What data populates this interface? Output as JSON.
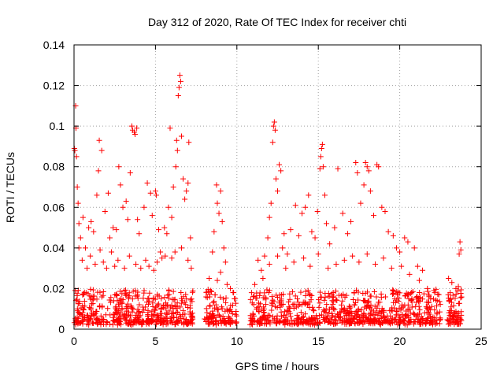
{
  "chart_data": {
    "type": "scatter",
    "title": "Day 312 of 2020, Rate Of TEC Index for receiver chti",
    "xlabel": "GPS time / hours",
    "ylabel": "ROTI / TECUs",
    "xlim": [
      0,
      25
    ],
    "ylim": [
      0,
      0.14
    ],
    "xticks": [
      0,
      5,
      10,
      15,
      20,
      25
    ],
    "xtick_labels": [
      "0",
      "5",
      "10",
      "15",
      "20",
      "25"
    ],
    "yticks": [
      0,
      0.02,
      0.04,
      0.06,
      0.08,
      0.1,
      0.12,
      0.14
    ],
    "ytick_labels": [
      "0",
      "0.02",
      "0.04",
      "0.06",
      "0.08",
      "0.1",
      "0.12",
      "0.14"
    ],
    "grid": true,
    "marker": "+",
    "color": "#ff0000",
    "series": [
      {
        "name": "ROTI",
        "points": [
          [
            0.02,
            0.089
          ],
          [
            0.05,
            0.088
          ],
          [
            0.1,
            0.11
          ],
          [
            0.12,
            0.099
          ],
          [
            0.15,
            0.085
          ],
          [
            0.2,
            0.07
          ],
          [
            0.25,
            0.062
          ],
          [
            0.3,
            0.052
          ],
          [
            0.4,
            0.045
          ],
          [
            0.55,
            0.055
          ],
          [
            0.7,
            0.04
          ],
          [
            0.9,
            0.05
          ],
          [
            1.05,
            0.053
          ],
          [
            1.2,
            0.048
          ],
          [
            1.4,
            0.066
          ],
          [
            1.5,
            0.078
          ],
          [
            1.55,
            0.093
          ],
          [
            1.7,
            0.088
          ],
          [
            1.9,
            0.058
          ],
          [
            2.1,
            0.067
          ],
          [
            2.2,
            0.045
          ],
          [
            2.4,
            0.05
          ],
          [
            2.6,
            0.049
          ],
          [
            2.75,
            0.08
          ],
          [
            2.85,
            0.071
          ],
          [
            3.0,
            0.06
          ],
          [
            3.2,
            0.063
          ],
          [
            3.3,
            0.054
          ],
          [
            3.45,
            0.077
          ],
          [
            3.55,
            0.1
          ],
          [
            3.6,
            0.098
          ],
          [
            3.7,
            0.097
          ],
          [
            3.75,
            0.096
          ],
          [
            3.85,
            0.099
          ],
          [
            3.9,
            0.054
          ],
          [
            4.0,
            0.047
          ],
          [
            4.3,
            0.06
          ],
          [
            4.5,
            0.072
          ],
          [
            4.7,
            0.067
          ],
          [
            4.8,
            0.056
          ],
          [
            5.0,
            0.068
          ],
          [
            5.05,
            0.066
          ],
          [
            5.2,
            0.049
          ],
          [
            5.3,
            0.038
          ],
          [
            5.4,
            0.035
          ],
          [
            5.55,
            0.05
          ],
          [
            5.7,
            0.047
          ],
          [
            5.8,
            0.06
          ],
          [
            5.9,
            0.099
          ],
          [
            6.0,
            0.055
          ],
          [
            6.1,
            0.07
          ],
          [
            6.25,
            0.08
          ],
          [
            6.3,
            0.093
          ],
          [
            6.35,
            0.088
          ],
          [
            6.4,
            0.115
          ],
          [
            6.45,
            0.119
          ],
          [
            6.5,
            0.125
          ],
          [
            6.55,
            0.122
          ],
          [
            6.6,
            0.095
          ],
          [
            6.7,
            0.074
          ],
          [
            6.8,
            0.064
          ],
          [
            6.9,
            0.068
          ],
          [
            7.0,
            0.072
          ],
          [
            7.05,
            0.092
          ],
          [
            7.15,
            0.045
          ],
          [
            7.2,
            0.03
          ],
          [
            8.3,
            0.025
          ],
          [
            8.5,
            0.038
          ],
          [
            8.6,
            0.048
          ],
          [
            8.75,
            0.071
          ],
          [
            8.8,
            0.062
          ],
          [
            8.9,
            0.057
          ],
          [
            9.0,
            0.068
          ],
          [
            9.1,
            0.053
          ],
          [
            9.2,
            0.04
          ],
          [
            9.3,
            0.033
          ],
          [
            9.6,
            0.02
          ],
          [
            9.8,
            0.018
          ],
          [
            10.9,
            0.018
          ],
          [
            11.1,
            0.022
          ],
          [
            11.3,
            0.034
          ],
          [
            11.5,
            0.029
          ],
          [
            11.7,
            0.036
          ],
          [
            11.9,
            0.045
          ],
          [
            12.0,
            0.055
          ],
          [
            12.1,
            0.062
          ],
          [
            12.2,
            0.092
          ],
          [
            12.25,
            0.1
          ],
          [
            12.3,
            0.102
          ],
          [
            12.35,
            0.098
          ],
          [
            12.4,
            0.074
          ],
          [
            12.5,
            0.068
          ],
          [
            12.6,
            0.081
          ],
          [
            12.7,
            0.078
          ],
          [
            12.8,
            0.04
          ],
          [
            12.9,
            0.047
          ],
          [
            13.1,
            0.037
          ],
          [
            13.3,
            0.049
          ],
          [
            13.6,
            0.061
          ],
          [
            13.8,
            0.046
          ],
          [
            14.0,
            0.057
          ],
          [
            14.2,
            0.06
          ],
          [
            14.4,
            0.066
          ],
          [
            14.6,
            0.048
          ],
          [
            14.8,
            0.045
          ],
          [
            14.95,
            0.058
          ],
          [
            15.1,
            0.079
          ],
          [
            15.15,
            0.085
          ],
          [
            15.2,
            0.089
          ],
          [
            15.25,
            0.091
          ],
          [
            15.3,
            0.08
          ],
          [
            15.4,
            0.066
          ],
          [
            15.5,
            0.052
          ],
          [
            15.7,
            0.042
          ],
          [
            16.0,
            0.05
          ],
          [
            16.2,
            0.079
          ],
          [
            16.5,
            0.057
          ],
          [
            16.8,
            0.047
          ],
          [
            17.0,
            0.053
          ],
          [
            17.3,
            0.082
          ],
          [
            17.4,
            0.077
          ],
          [
            17.6,
            0.062
          ],
          [
            17.8,
            0.071
          ],
          [
            17.9,
            0.082
          ],
          [
            18.0,
            0.08
          ],
          [
            18.1,
            0.078
          ],
          [
            18.2,
            0.068
          ],
          [
            18.4,
            0.056
          ],
          [
            18.6,
            0.081
          ],
          [
            18.7,
            0.08
          ],
          [
            18.9,
            0.06
          ],
          [
            19.1,
            0.058
          ],
          [
            19.3,
            0.048
          ],
          [
            19.6,
            0.046
          ],
          [
            19.8,
            0.04
          ],
          [
            20.0,
            0.038
          ],
          [
            20.3,
            0.045
          ],
          [
            20.5,
            0.043
          ],
          [
            20.9,
            0.04
          ],
          [
            21.1,
            0.031
          ],
          [
            21.4,
            0.029
          ],
          [
            21.7,
            0.02
          ],
          [
            22.1,
            0.019
          ],
          [
            22.4,
            0.017
          ],
          [
            23.0,
            0.025
          ],
          [
            23.2,
            0.023
          ],
          [
            23.45,
            0.02
          ],
          [
            23.65,
            0.037
          ],
          [
            23.7,
            0.043
          ],
          [
            23.75,
            0.039
          ],
          [
            0.3,
            0.04
          ],
          [
            0.5,
            0.034
          ],
          [
            0.8,
            0.03
          ],
          [
            1.0,
            0.036
          ],
          [
            1.3,
            0.032
          ],
          [
            1.6,
            0.039
          ],
          [
            1.8,
            0.033
          ],
          [
            2.0,
            0.03
          ],
          [
            2.3,
            0.038
          ],
          [
            2.5,
            0.031
          ],
          [
            2.7,
            0.034
          ],
          [
            3.1,
            0.03
          ],
          [
            3.4,
            0.036
          ],
          [
            3.8,
            0.032
          ],
          [
            4.1,
            0.03
          ],
          [
            4.4,
            0.034
          ],
          [
            4.6,
            0.031
          ],
          [
            4.9,
            0.029
          ],
          [
            5.1,
            0.033
          ],
          [
            5.6,
            0.036
          ],
          [
            6.0,
            0.035
          ],
          [
            6.2,
            0.038
          ],
          [
            6.6,
            0.04
          ],
          [
            7.0,
            0.034
          ],
          [
            8.4,
            0.019
          ],
          [
            8.8,
            0.024
          ],
          [
            9.0,
            0.028
          ],
          [
            9.4,
            0.022
          ],
          [
            9.9,
            0.015
          ],
          [
            11.0,
            0.016
          ],
          [
            11.6,
            0.025
          ],
          [
            12.0,
            0.032
          ],
          [
            12.5,
            0.036
          ],
          [
            13.0,
            0.03
          ],
          [
            13.5,
            0.033
          ],
          [
            14.1,
            0.035
          ],
          [
            14.5,
            0.031
          ],
          [
            15.0,
            0.037
          ],
          [
            15.6,
            0.03
          ],
          [
            16.1,
            0.032
          ],
          [
            16.6,
            0.034
          ],
          [
            17.1,
            0.036
          ],
          [
            17.5,
            0.033
          ],
          [
            18.0,
            0.037
          ],
          [
            18.5,
            0.032
          ],
          [
            19.0,
            0.035
          ],
          [
            19.5,
            0.03
          ],
          [
            20.1,
            0.031
          ],
          [
            20.6,
            0.027
          ],
          [
            21.2,
            0.024
          ],
          [
            21.8,
            0.016
          ],
          [
            22.3,
            0.014
          ],
          [
            23.1,
            0.018
          ],
          [
            23.6,
            0.021
          ]
        ]
      }
    ],
    "dense_band": {
      "note": "Dense cloud of markers between 0.002 and 0.02 across observed intervals",
      "intervals": [
        [
          0,
          7.3
        ],
        [
          8.0,
          10.0
        ],
        [
          10.8,
          22.5
        ],
        [
          22.9,
          23.8
        ]
      ],
      "ymin": 0.002,
      "ymax": 0.02,
      "count": 1400
    }
  }
}
